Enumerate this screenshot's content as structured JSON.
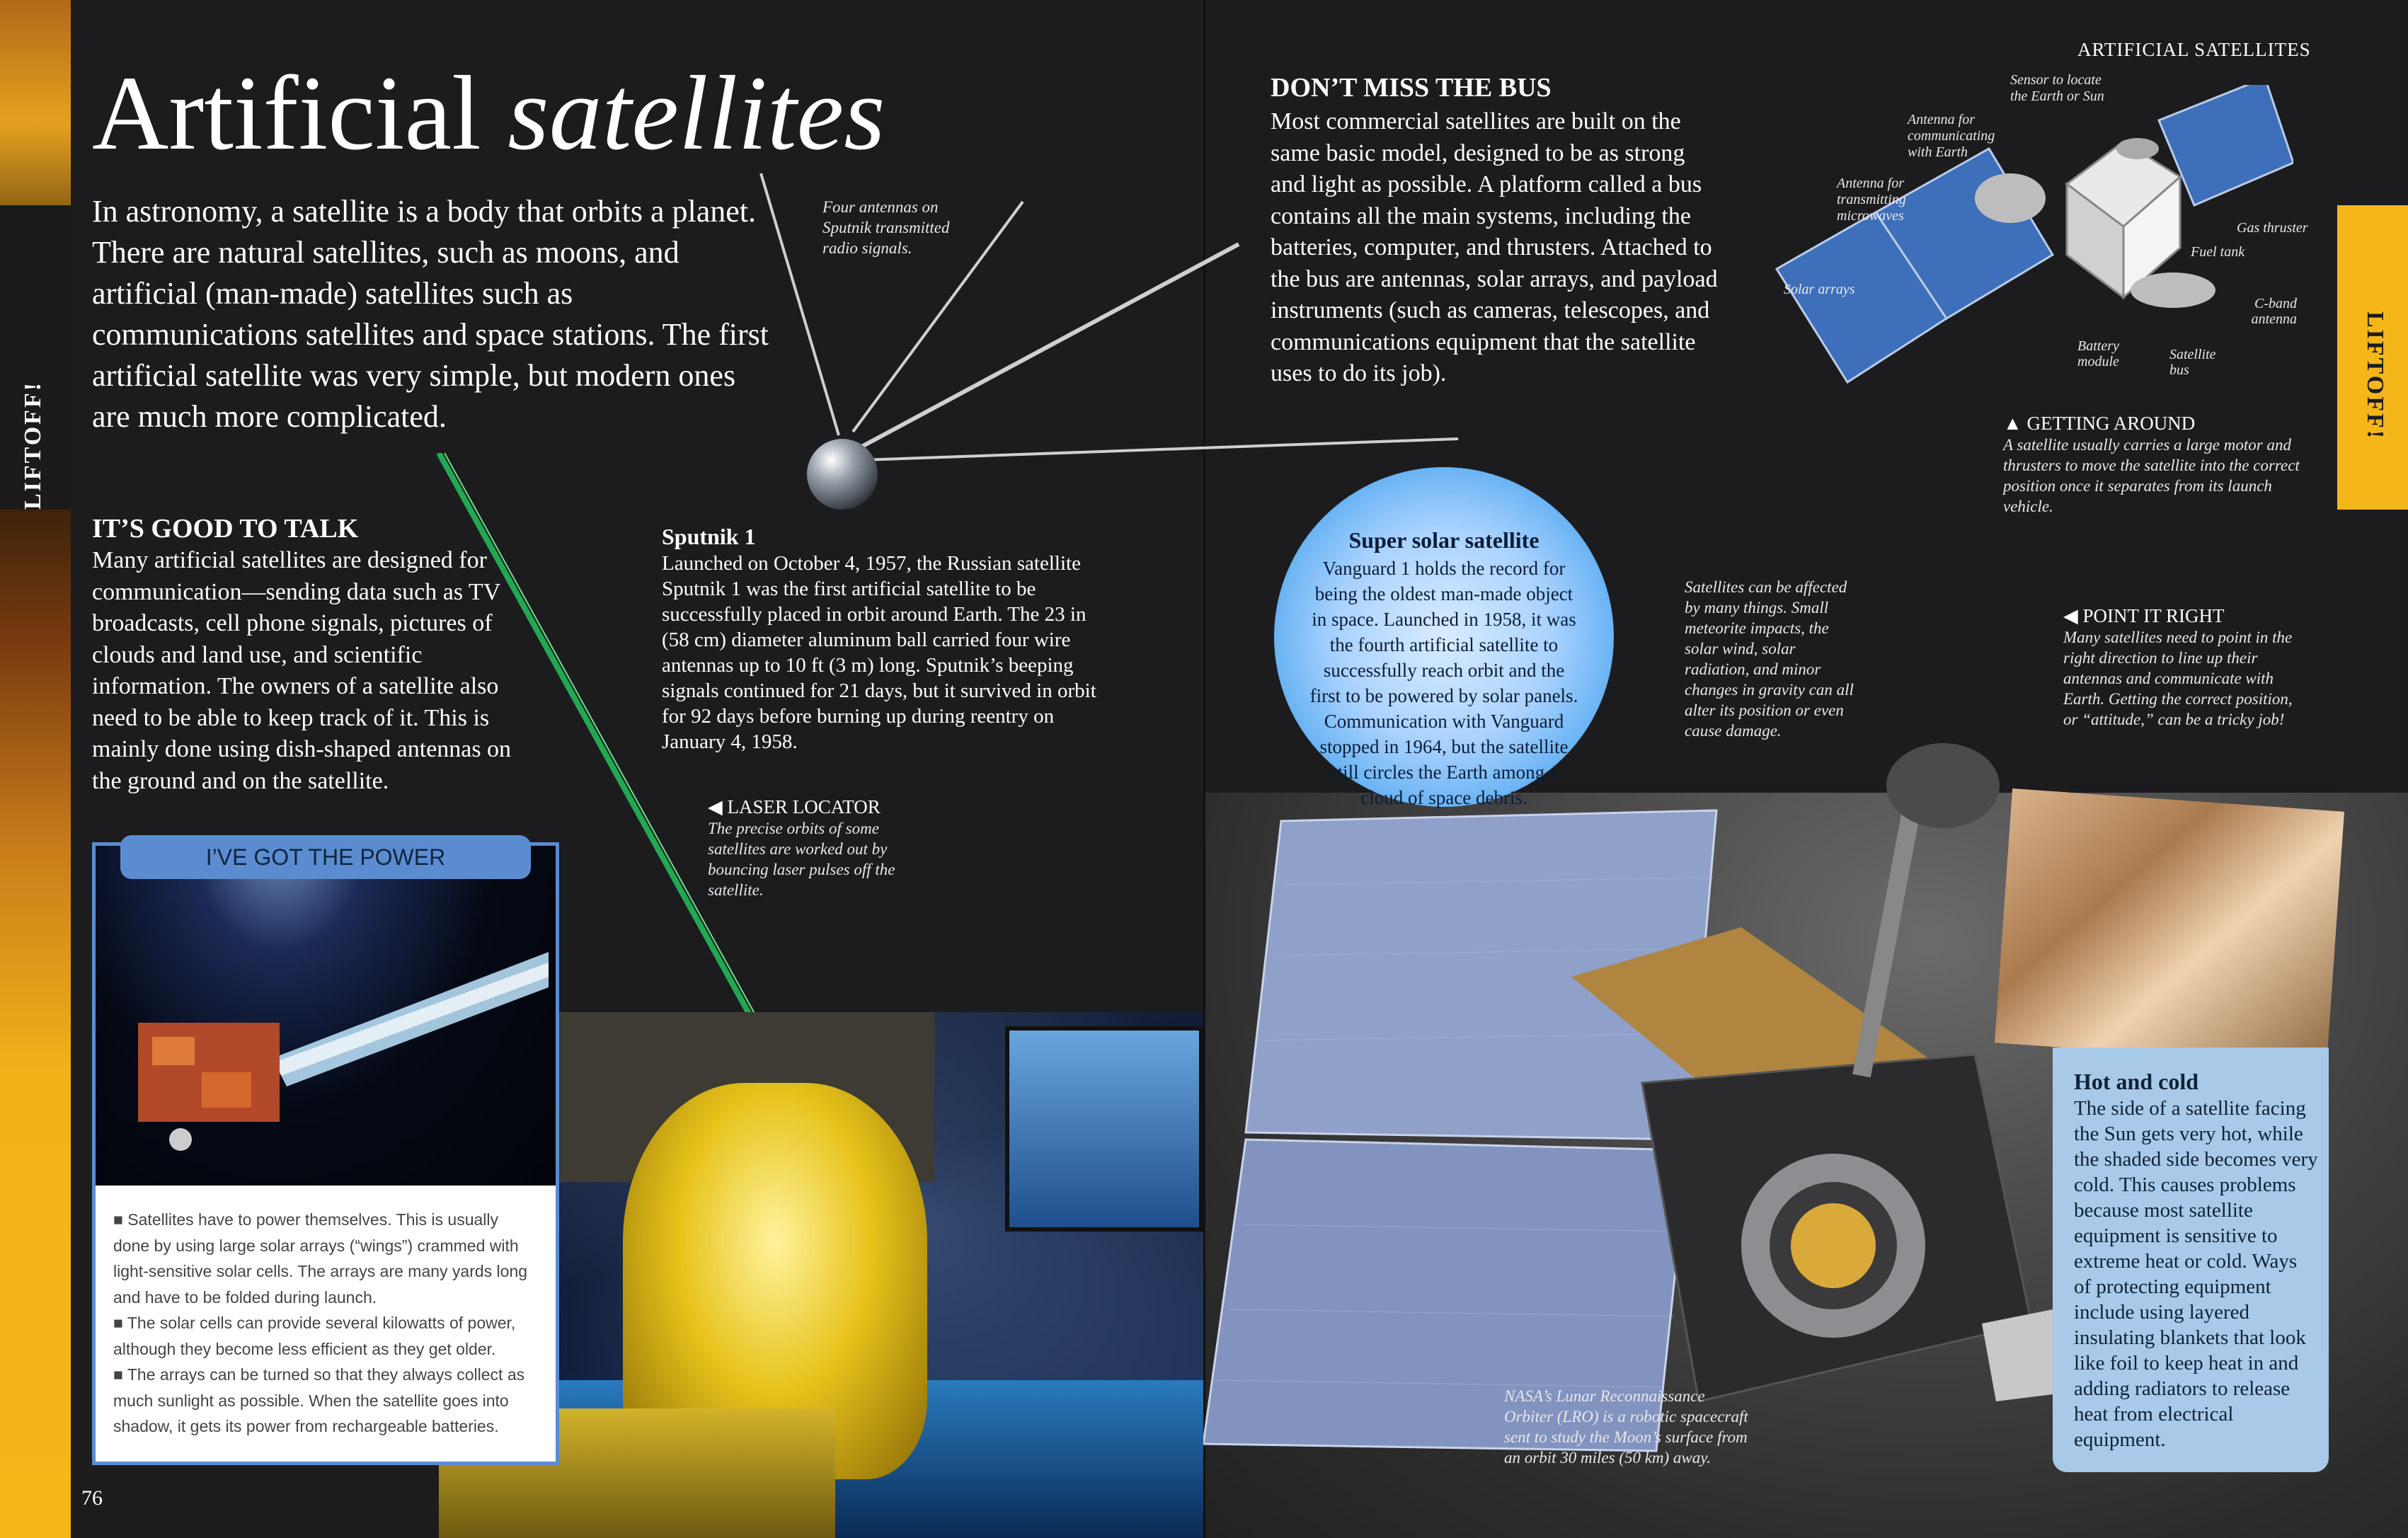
{
  "side_tab": "LIFTOFF!",
  "running_head": "ARTIFICIAL SATELLITES",
  "title": {
    "main": "Artificial",
    "italic": "satellites"
  },
  "intro": "In astronomy, a satellite is a body that orbits a planet. There are natural satellites, such as moons, and artificial (man-made) satellites such as communications satellites and space stations. The first artificial satellite was very simple, but modern ones are much more complicated.",
  "talk": {
    "heading": "IT’S GOOD TO TALK",
    "body": "Many artificial satellites are designed for communication—sending data such as TV broadcasts, cell phone signals, pictures of clouds and land use, and scientific information. The owners of a satellite also need to be able to keep track of it. This is mainly done using dish-shaped antennas on the ground and on the satellite."
  },
  "sputnik": {
    "antenna_caption": "Four antennas on Sputnik transmitted radio signals.",
    "heading": "Sputnik 1",
    "body": "Launched on October 4, 1957, the Russian satellite Sputnik 1 was the first artificial satellite to be successfully placed in orbit around Earth. The 23 in (58 cm) diameter aluminum ball carried four wire antennas up to 10 ft (3 m) long. Sputnik’s beeping signals continued for 21 days, but it survived in orbit for 92 days before burning up during reentry on January 4, 1958."
  },
  "power": {
    "label": "I’VE GOT THE POWER",
    "bullets": [
      "Satellites have to power themselves. This is usually done by using large solar arrays (“wings”) crammed with light-sensitive solar cells. The arrays are many yards long and have to be folded during launch.",
      "The solar cells can provide several kilowatts of power, although they become less efficient as they get older.",
      "The arrays can be turned so that they always collect as much sunlight as possible. When the satellite goes into shadow, it gets its power from rechargeable batteries."
    ]
  },
  "laser": {
    "heading": "LASER LOCATOR",
    "body": "The precise orbits of some satellites are worked out by bouncing laser pulses off the satellite."
  },
  "page_left": "76",
  "bus": {
    "heading": "DON’T MISS THE BUS",
    "body": "Most commercial satellites are built on the same basic model, designed to be as strong and light as possible. A platform called a bus contains all the main systems, including the batteries, computer, and thrusters. Attached to the bus are antennas, solar arrays, and payload instruments (such as cameras, telescopes, and communications equipment that the satellite uses to do its job)."
  },
  "diagram_labels": {
    "sensor": "Sensor to locate the Earth or Sun",
    "antenna_comm": "Antenna for communicating with Earth",
    "antenna_micro": "Antenna for transmitting microwaves",
    "gas": "Gas thruster",
    "fuel": "Fuel tank",
    "solar": "Solar arrays",
    "cband": "C-band antenna",
    "battery": "Battery module",
    "bus": "Satellite bus"
  },
  "getting_around": {
    "heading": "GETTING AROUND",
    "body": "A satellite usually carries a large motor and thrusters to move the satellite into the correct position once it separates from its launch vehicle."
  },
  "vanguard": {
    "heading": "Super solar satellite",
    "body": "Vanguard 1 holds the record for being the oldest man-made object in space. Launched in 1958, it was the fourth artificial satellite to successfully reach orbit and the first to be powered by solar panels. Communication with Vanguard stopped in 1964, but the satellite still circles the Earth among a cloud of space debris."
  },
  "affected": "Satellites can be affected by many things. Small meteorite impacts, the solar wind, solar radiation, and minor changes in gravity can all alter its position or even cause damage.",
  "point": {
    "heading": "POINT IT RIGHT",
    "body": "Many satellites need to point in the right direction to line up their antennas and communicate with Earth. Getting the correct position, or “attitude,” can be a tricky job!"
  },
  "hot": {
    "heading": "Hot and cold",
    "body": "The side of a satellite facing the Sun gets very hot, while the shaded side becomes very cold. This causes problems because most satellite equipment is sensitive to extreme heat or cold. Ways of protecting equipment include using layered insulating blankets that look like foil to keep heat in and adding radiators to release heat from electrical equipment."
  },
  "lro_caption": "NASA’s Lunar Reconnaissance Orbiter (LRO) is a robotic spacecraft sent to study the Moon’s surface from an orbit 30 miles (50 km) away.",
  "colors": {
    "accent_yellow": "#f5b61a",
    "panel_blue": "#5b8cd0",
    "light_blue": "#a8c9e8",
    "background": "#1c1c1f"
  }
}
